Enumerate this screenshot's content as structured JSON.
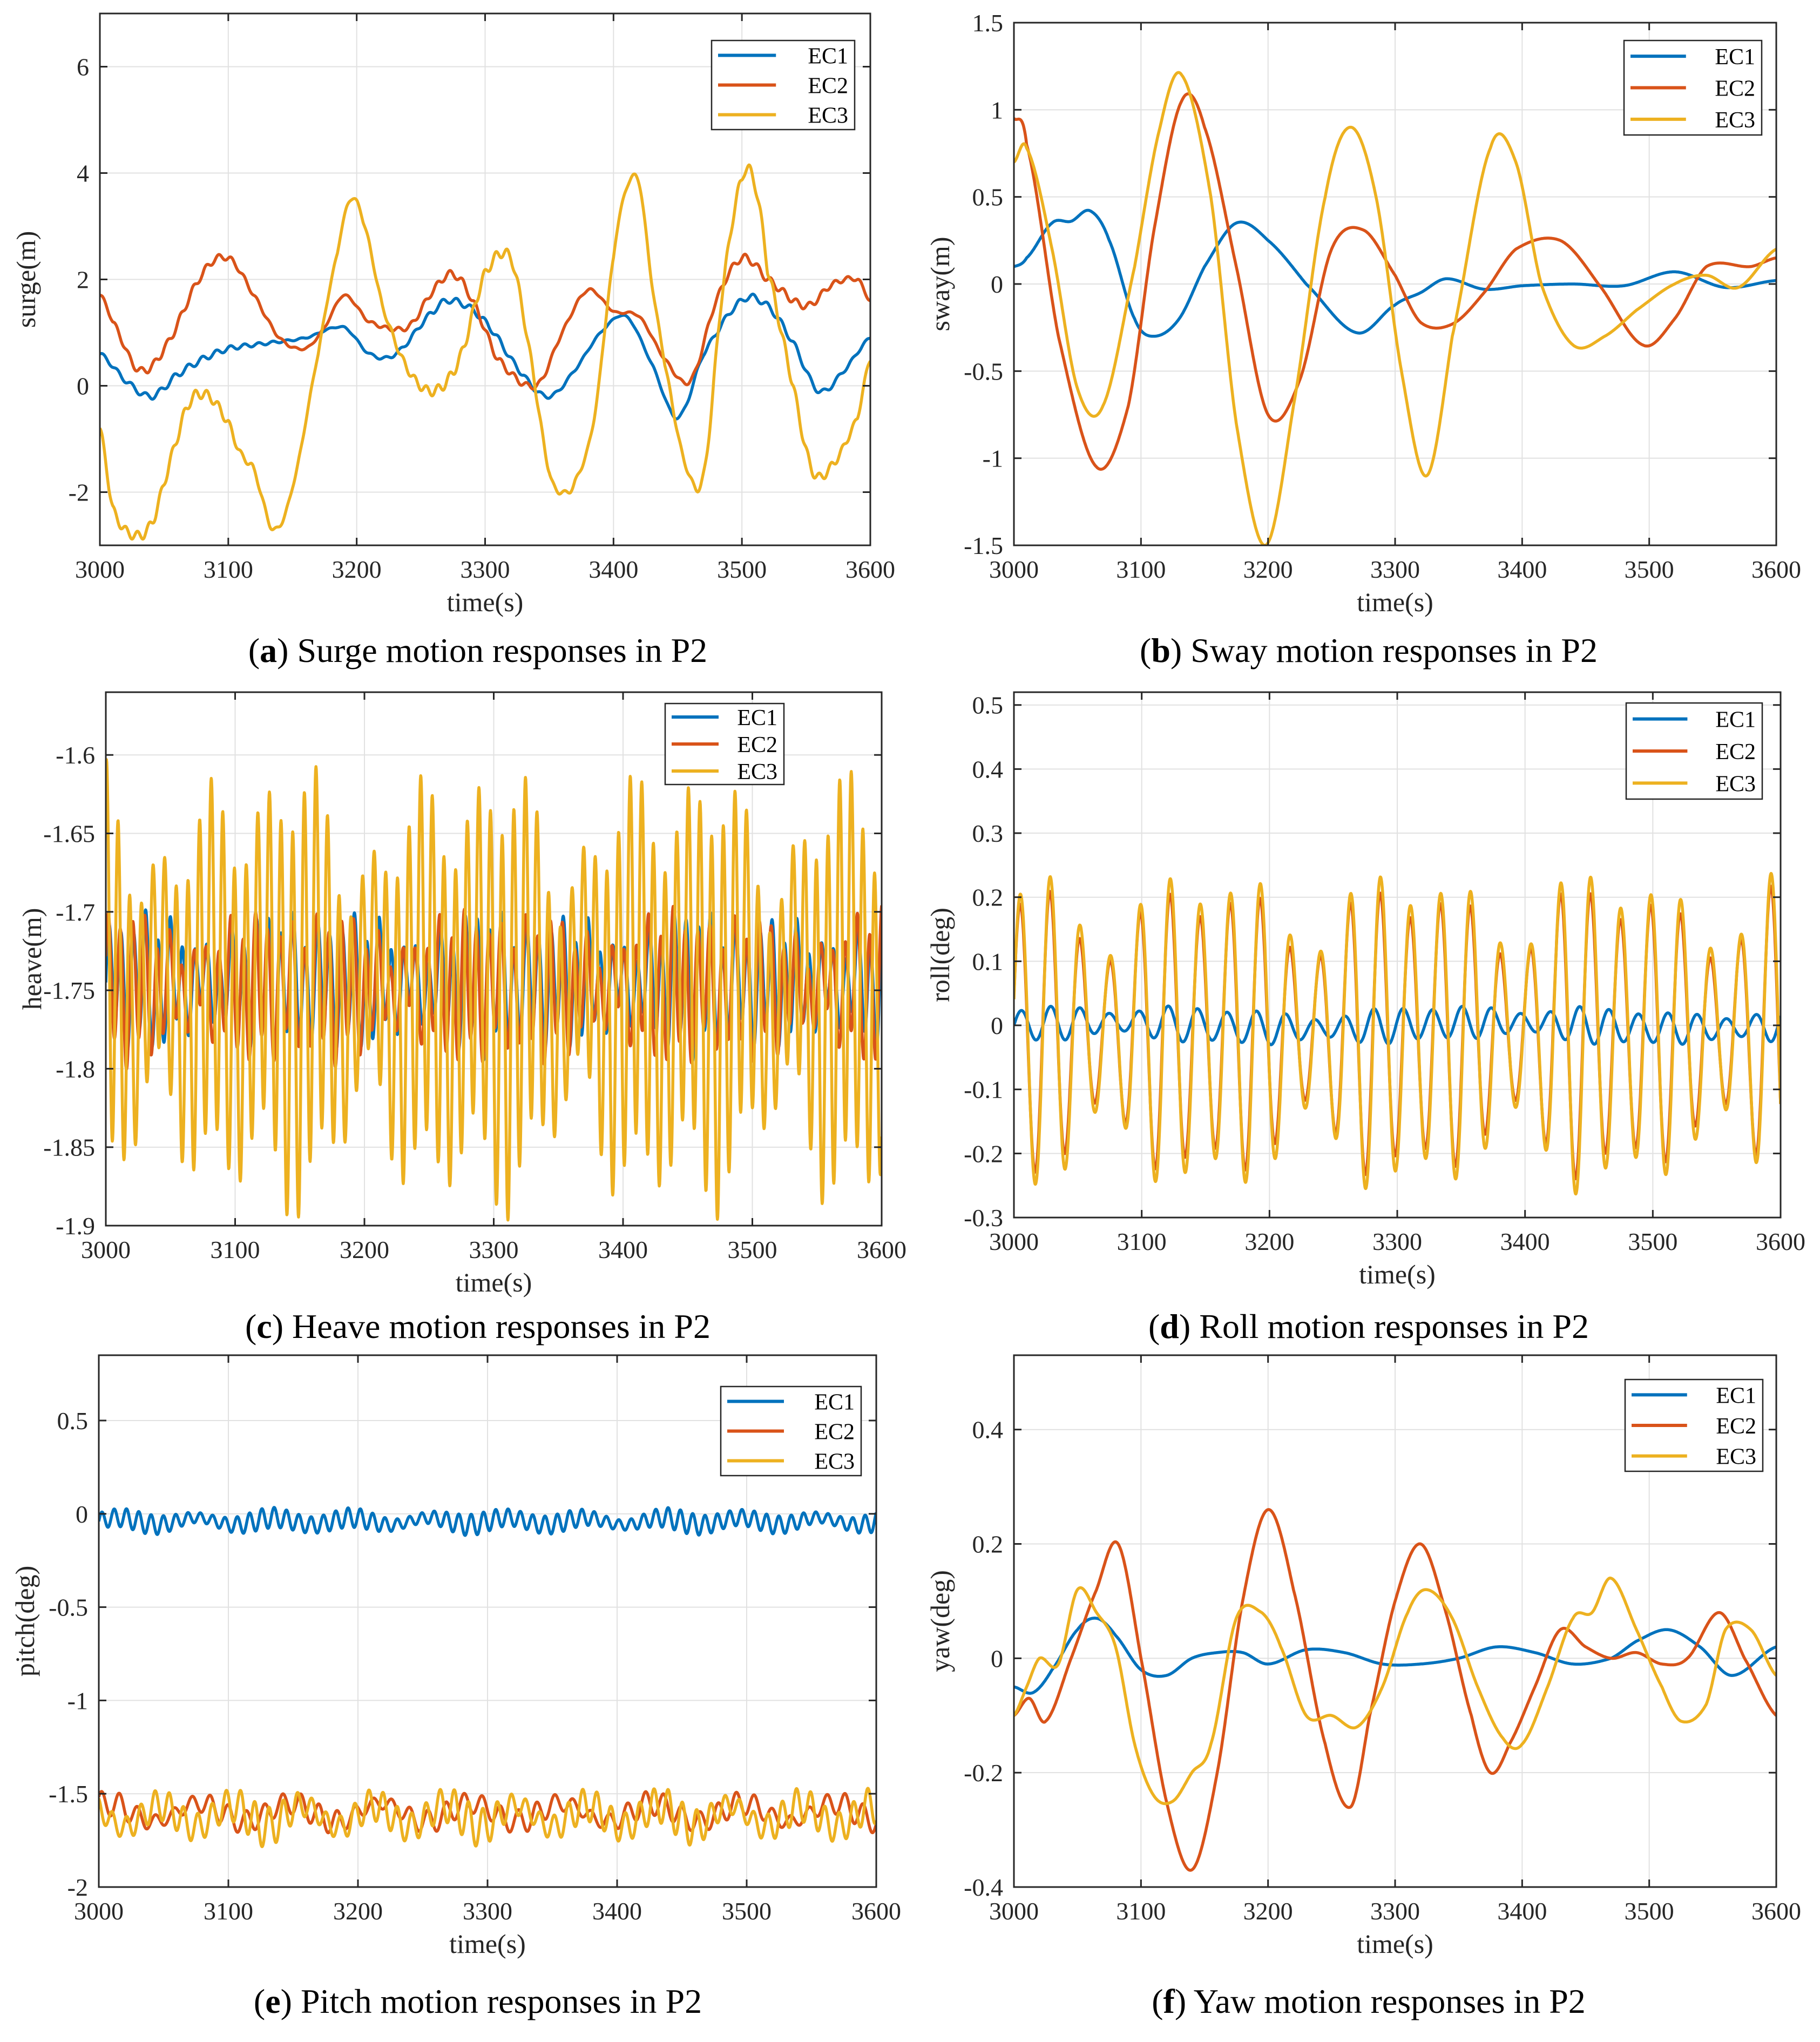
{
  "figure": {
    "colors": {
      "EC1": "#0072BD",
      "EC2": "#D95319",
      "EC3": "#EDB120"
    }
  },
  "chart_data": [
    {
      "id": "a",
      "type": "line",
      "caption_letter": "a",
      "caption_text": " Surge motion responses in P2",
      "xlabel": "time(s)",
      "ylabel": "surge(m)",
      "xlim": [
        3000,
        3600
      ],
      "ylim": [
        -3,
        7
      ],
      "xticks": [
        3000,
        3100,
        3200,
        3300,
        3400,
        3500,
        3600
      ],
      "yticks": [
        -2,
        0,
        2,
        4,
        6
      ],
      "ytick_labels": [
        "-2",
        "0",
        "2",
        "4",
        "6"
      ],
      "grid": true,
      "legend_position": "top-right",
      "series": [
        {
          "name": "EC1",
          "noise": 0.06,
          "noise_period": 11,
          "x": [
            3000,
            3020,
            3040,
            3060,
            3080,
            3100,
            3130,
            3160,
            3190,
            3210,
            3230,
            3260,
            3275,
            3300,
            3330,
            3350,
            3370,
            3390,
            3410,
            3430,
            3450,
            3470,
            3500,
            3520,
            3540,
            3560,
            3580,
            3600
          ],
          "y": [
            0.6,
            0.1,
            -0.2,
            0.2,
            0.5,
            0.7,
            0.8,
            0.9,
            1.1,
            0.6,
            0.6,
            1.4,
            1.6,
            1.2,
            0.2,
            -0.2,
            0.3,
            1.0,
            1.3,
            0.4,
            -0.6,
            0.6,
            1.6,
            1.5,
            0.8,
            -0.1,
            0.3,
            0.9
          ]
        },
        {
          "name": "EC2",
          "noise": 0.07,
          "noise_period": 10,
          "x": [
            3000,
            3010,
            3030,
            3050,
            3080,
            3100,
            3120,
            3140,
            3160,
            3175,
            3190,
            3210,
            3240,
            3260,
            3275,
            3290,
            3310,
            3340,
            3360,
            3380,
            3400,
            3420,
            3440,
            3460,
            3480,
            3500,
            3520,
            3550,
            3570,
            3590,
            3600
          ],
          "y": [
            1.7,
            1.2,
            0.3,
            0.7,
            2.1,
            2.4,
            1.7,
            0.9,
            0.7,
            1.1,
            1.7,
            1.2,
            1.1,
            1.8,
            2.1,
            1.6,
            0.5,
            0.0,
            1.0,
            1.8,
            1.4,
            1.3,
            0.5,
            0.1,
            1.6,
            2.4,
            2.0,
            1.5,
            1.9,
            2.0,
            1.6
          ]
        },
        {
          "name": "EC3",
          "noise": 0.1,
          "noise_period": 9,
          "x": [
            3000,
            3010,
            3025,
            3040,
            3055,
            3070,
            3085,
            3100,
            3110,
            3120,
            3135,
            3150,
            3170,
            3185,
            3195,
            3205,
            3220,
            3240,
            3260,
            3280,
            3300,
            3320,
            3335,
            3350,
            3360,
            3370,
            3385,
            3400,
            3410,
            3420,
            3430,
            3440,
            3455,
            3470,
            3485,
            3500,
            3510,
            3520,
            3540,
            3555,
            3570,
            3590,
            3600
          ],
          "y": [
            -0.8,
            -2.3,
            -2.8,
            -2.6,
            -1.4,
            -0.3,
            -0.2,
            -0.7,
            -1.3,
            -1.6,
            -2.7,
            -1.9,
            0.6,
            2.5,
            3.5,
            3.1,
            1.5,
            0.3,
            -0.1,
            0.5,
            2.1,
            2.4,
            0.6,
            -1.6,
            -2.0,
            -1.8,
            -0.6,
            2.4,
            3.7,
            3.8,
            1.9,
            0.4,
            -1.4,
            -1.7,
            1.8,
            3.9,
            3.8,
            2.2,
            0.0,
            -1.6,
            -1.5,
            -0.6,
            0.5
          ]
        }
      ]
    },
    {
      "id": "b",
      "type": "line",
      "caption_letter": "b",
      "caption_text": " Sway motion responses in P2",
      "xlabel": "time(s)",
      "ylabel": "sway(m)",
      "xlim": [
        3000,
        3600
      ],
      "ylim": [
        -1.5,
        1.5
      ],
      "xticks": [
        3000,
        3100,
        3200,
        3300,
        3400,
        3500,
        3600
      ],
      "yticks": [
        -1.5,
        -1,
        -0.5,
        0,
        0.5,
        1,
        1.5
      ],
      "ytick_labels": [
        "-1.5",
        "-1",
        "-0.5",
        "0",
        "0.5",
        "1",
        "1.5"
      ],
      "grid": true,
      "legend_position": "top-right",
      "series": [
        {
          "name": "EC1",
          "noise": 0,
          "noise_period": 10,
          "x": [
            3000,
            3010,
            3030,
            3045,
            3060,
            3075,
            3095,
            3110,
            3130,
            3150,
            3175,
            3200,
            3230,
            3270,
            3300,
            3320,
            3340,
            3370,
            3400,
            3440,
            3480,
            3520,
            3560,
            3600
          ],
          "y": [
            0.1,
            0.15,
            0.35,
            0.36,
            0.42,
            0.25,
            -0.2,
            -0.3,
            -0.2,
            0.1,
            0.35,
            0.25,
            0.0,
            -0.28,
            -0.12,
            -0.05,
            0.03,
            -0.03,
            -0.01,
            0.0,
            -0.01,
            0.07,
            -0.02,
            0.02
          ]
        },
        {
          "name": "EC2",
          "noise": 0,
          "noise_period": 10,
          "x": [
            3000,
            3010,
            3035,
            3065,
            3090,
            3110,
            3132,
            3150,
            3175,
            3200,
            3225,
            3250,
            3275,
            3300,
            3320,
            3345,
            3370,
            3395,
            3430,
            3460,
            3495,
            3520,
            3545,
            3580,
            3600
          ],
          "y": [
            0.95,
            0.8,
            -0.3,
            -1.05,
            -0.7,
            0.3,
            1.05,
            0.9,
            0.1,
            -0.75,
            -0.55,
            0.2,
            0.31,
            0.05,
            -0.22,
            -0.23,
            -0.05,
            0.2,
            0.25,
            0.0,
            -0.35,
            -0.2,
            0.1,
            0.1,
            0.15
          ]
        },
        {
          "name": "EC3",
          "noise": 0,
          "noise_period": 10,
          "x": [
            3000,
            3010,
            3030,
            3050,
            3070,
            3095,
            3115,
            3132,
            3155,
            3175,
            3198,
            3220,
            3245,
            3265,
            3285,
            3305,
            3325,
            3345,
            3375,
            3395,
            3415,
            3440,
            3465,
            3490,
            3520,
            3545,
            3570,
            3600
          ],
          "y": [
            0.7,
            0.78,
            0.2,
            -0.6,
            -0.7,
            0.1,
            0.9,
            1.2,
            0.5,
            -0.8,
            -1.5,
            -0.7,
            0.5,
            0.9,
            0.5,
            -0.5,
            -1.1,
            -0.3,
            0.78,
            0.7,
            0.0,
            -0.35,
            -0.3,
            -0.15,
            0.0,
            0.05,
            -0.02,
            0.2
          ]
        }
      ]
    },
    {
      "id": "c",
      "type": "line",
      "caption_letter": "c",
      "caption_text": " Heave motion responses in P2",
      "xlabel": "time(s)",
      "ylabel": "heave(m)",
      "xlim": [
        3000,
        3600
      ],
      "ylim": [
        -1.9,
        -1.56
      ],
      "xticks": [
        3000,
        3100,
        3200,
        3300,
        3400,
        3500,
        3600
      ],
      "yticks": [
        -1.9,
        -1.85,
        -1.8,
        -1.75,
        -1.7,
        -1.65,
        -1.6
      ],
      "ytick_labels": [
        "-1.9",
        "-1.85",
        "-1.8",
        "-1.75",
        "-1.7",
        "-1.65",
        "-1.6"
      ],
      "grid": true,
      "legend_position": "top-right",
      "series": [
        {
          "name": "EC1",
          "base": -1.745,
          "amp": 0.035,
          "period": 9.5,
          "amp2": 0.01,
          "period2": 23,
          "phase": 0.0
        },
        {
          "name": "EC2",
          "base": -1.748,
          "amp": 0.038,
          "period": 9.5,
          "amp2": 0.01,
          "period2": 23,
          "phase": 0.4
        },
        {
          "name": "EC3",
          "base": -1.75,
          "amp": 0.11,
          "period": 9.0,
          "amp2": 0.025,
          "period2": 41,
          "phase": 1.2
        }
      ]
    },
    {
      "id": "d",
      "type": "line",
      "caption_letter": "d",
      "caption_text": " Roll motion responses in P2",
      "xlabel": "time(s)",
      "ylabel": "roll(deg)",
      "xlim": [
        3000,
        3600
      ],
      "ylim": [
        -0.3,
        0.52
      ],
      "xticks": [
        3000,
        3100,
        3200,
        3300,
        3400,
        3500,
        3600
      ],
      "yticks": [
        -0.3,
        -0.2,
        -0.1,
        0,
        0.1,
        0.2,
        0.3,
        0.4,
        0.5
      ],
      "ytick_labels": [
        "-0.3",
        "-0.2",
        "-0.1",
        "0",
        "0.1",
        "0.2",
        "0.3",
        "0.4",
        "0.5"
      ],
      "grid": true,
      "legend_position": "top-right",
      "series": [
        {
          "name": "EC1",
          "base": 0.0,
          "amp": 0.025,
          "period": 23,
          "amp2": 0.005,
          "period2": 300,
          "phase": 0.0
        },
        {
          "name": "EC2",
          "base": -0.01,
          "amp": 0.2,
          "period": 23.5,
          "amp2": 0.0,
          "period2": 100,
          "phase": 0.3
        },
        {
          "name": "EC3",
          "base": -0.01,
          "amp": 0.22,
          "period": 23.5,
          "amp2": 0.0,
          "period2": 100,
          "phase": 0.25
        }
      ]
    },
    {
      "id": "e",
      "type": "line",
      "caption_letter": "e",
      "caption_text": " Pitch motion responses in P2",
      "xlabel": "time(s)",
      "ylabel": "pitch(deg)",
      "xlim": [
        3000,
        3600
      ],
      "ylim": [
        -2,
        0.85
      ],
      "xticks": [
        3000,
        3100,
        3200,
        3300,
        3400,
        3500,
        3600
      ],
      "yticks": [
        -2,
        -1.5,
        -1,
        -0.5,
        0,
        0.5
      ],
      "ytick_labels": [
        "-2",
        "-1.5",
        "-1",
        "-0.5",
        "0",
        "0.5"
      ],
      "grid": true,
      "legend_position": "top-right",
      "series": [
        {
          "name": "EC1",
          "base": -0.04,
          "amp": 0.05,
          "period": 9.5,
          "amp2": 0.02,
          "period2": 60,
          "phase": 0.0
        },
        {
          "name": "EC2",
          "base": -1.6,
          "amp": 0.06,
          "period": 14,
          "amp2": 0.05,
          "period2": 70,
          "phase": 0.7
        },
        {
          "name": "EC3",
          "base": -1.62,
          "amp": 0.09,
          "period": 11,
          "amp2": 0.06,
          "period2": 55,
          "phase": 1.9
        }
      ]
    },
    {
      "id": "f",
      "type": "line",
      "caption_letter": "f",
      "caption_text": " Yaw motion responses in P2",
      "xlabel": "time(s)",
      "ylabel": "yaw(deg)",
      "xlim": [
        3000,
        3600
      ],
      "ylim": [
        -0.4,
        0.53
      ],
      "xticks": [
        3000,
        3100,
        3200,
        3300,
        3400,
        3500,
        3600
      ],
      "yticks": [
        -0.4,
        -0.2,
        0,
        0.2,
        0.4
      ],
      "ytick_labels": [
        "-0.4",
        "-0.2",
        "0",
        "0.2",
        "0.4"
      ],
      "grid": true,
      "legend_position": "top-right",
      "series": [
        {
          "name": "EC1",
          "noise": 0,
          "noise_period": 10,
          "x": [
            3000,
            3015,
            3030,
            3050,
            3065,
            3080,
            3100,
            3120,
            3140,
            3160,
            3180,
            3200,
            3230,
            3260,
            3290,
            3320,
            3350,
            3380,
            3410,
            3440,
            3470,
            3490,
            3515,
            3540,
            3565,
            3600
          ],
          "y": [
            -0.05,
            -0.06,
            -0.02,
            0.05,
            0.07,
            0.04,
            -0.02,
            -0.03,
            0.0,
            0.01,
            0.01,
            -0.01,
            0.015,
            0.01,
            -0.01,
            -0.01,
            0.0,
            0.02,
            0.01,
            -0.01,
            0.0,
            0.03,
            0.05,
            0.02,
            -0.03,
            0.02
          ]
        },
        {
          "name": "EC2",
          "noise": 0,
          "noise_period": 10,
          "x": [
            3000,
            3012,
            3025,
            3045,
            3065,
            3082,
            3100,
            3120,
            3140,
            3160,
            3180,
            3200,
            3220,
            3245,
            3265,
            3280,
            3300,
            3320,
            3340,
            3360,
            3375,
            3390,
            3410,
            3430,
            3450,
            3470,
            3490,
            3510,
            3530,
            3555,
            3575,
            3600
          ],
          "y": [
            -0.1,
            -0.07,
            -0.11,
            0.0,
            0.12,
            0.2,
            0.0,
            -0.25,
            -0.37,
            -0.2,
            0.1,
            0.26,
            0.12,
            -0.15,
            -0.26,
            -0.1,
            0.1,
            0.2,
            0.08,
            -0.1,
            -0.2,
            -0.15,
            -0.05,
            0.05,
            0.02,
            0.0,
            0.01,
            -0.01,
            0.0,
            0.08,
            0.0,
            -0.1
          ]
        },
        {
          "name": "EC3",
          "noise": 0,
          "noise_period": 10,
          "x": [
            3000,
            3010,
            3020,
            3035,
            3050,
            3065,
            3080,
            3095,
            3110,
            3125,
            3140,
            3155,
            3175,
            3195,
            3210,
            3230,
            3250,
            3270,
            3290,
            3310,
            3325,
            3345,
            3365,
            3385,
            3400,
            3420,
            3440,
            3455,
            3470,
            3490,
            3510,
            3525,
            3545,
            3560,
            3580,
            3600
          ],
          "y": [
            -0.1,
            -0.05,
            0.0,
            -0.01,
            0.12,
            0.08,
            0.02,
            -0.15,
            -0.24,
            -0.25,
            -0.2,
            -0.15,
            0.07,
            0.08,
            0.02,
            -0.1,
            -0.1,
            -0.12,
            -0.05,
            0.08,
            0.12,
            0.07,
            -0.05,
            -0.14,
            -0.15,
            -0.05,
            0.07,
            0.08,
            0.14,
            0.05,
            -0.05,
            -0.11,
            -0.08,
            0.05,
            0.05,
            -0.03
          ]
        }
      ]
    }
  ]
}
